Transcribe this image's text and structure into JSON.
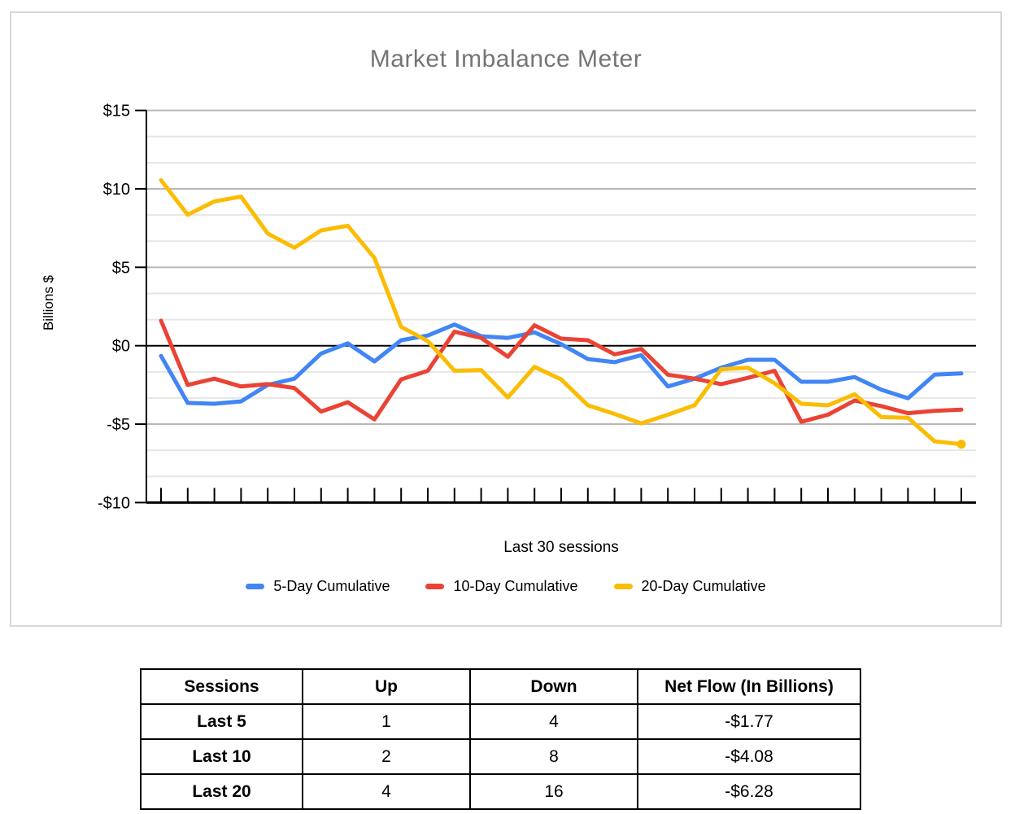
{
  "chart_data": {
    "type": "line",
    "title": "Market Imbalance Meter",
    "xlabel": "Last 30 sessions",
    "ylabel": "Billions $",
    "ylim": [
      -10,
      15
    ],
    "y_ticks": [
      15,
      10,
      5,
      0,
      -5,
      -10
    ],
    "y_tick_labels": [
      "$15",
      "$10",
      "$5",
      "$0",
      "-$5",
      "-$10"
    ],
    "x_tick_labels": [],
    "n_points": 31,
    "grid": "major and minor horizontal gridlines, minor every 1.67",
    "legend_position": "bottom",
    "series": [
      {
        "name": "5-Day Cumulative",
        "color": "#4285F4",
        "end_marker": false,
        "values": [
          -0.65,
          -3.65,
          -3.7,
          -3.55,
          -2.5,
          -2.1,
          -0.5,
          0.15,
          -1.0,
          0.35,
          0.65,
          1.35,
          0.6,
          0.5,
          0.85,
          0.1,
          -0.85,
          -1.05,
          -0.6,
          -2.6,
          -2.1,
          -1.4,
          -0.9,
          -0.9,
          -2.3,
          -2.3,
          -2.0,
          -2.8,
          -3.35,
          -1.85,
          -1.77
        ]
      },
      {
        "name": "10-Day Cumulative",
        "color": "#EA4335",
        "end_marker": false,
        "values": [
          1.6,
          -2.5,
          -2.1,
          -2.6,
          -2.45,
          -2.7,
          -4.2,
          -3.6,
          -4.7,
          -2.15,
          -1.6,
          0.9,
          0.5,
          -0.7,
          1.3,
          0.45,
          0.35,
          -0.55,
          -0.2,
          -1.85,
          -2.1,
          -2.45,
          -2.05,
          -1.6,
          -4.85,
          -4.4,
          -3.5,
          -3.85,
          -4.3,
          -4.15,
          -4.08
        ]
      },
      {
        "name": "20-Day Cumulative",
        "color": "#FBBC04",
        "end_marker": true,
        "values": [
          10.55,
          8.35,
          9.2,
          9.5,
          7.15,
          6.25,
          7.35,
          7.65,
          5.6,
          1.2,
          0.3,
          -1.6,
          -1.55,
          -3.3,
          -1.35,
          -2.15,
          -3.8,
          -4.35,
          -4.95,
          -4.4,
          -3.8,
          -1.5,
          -1.4,
          -2.4,
          -3.7,
          -3.8,
          -3.1,
          -4.55,
          -4.6,
          -6.1,
          -6.28
        ]
      }
    ],
    "colors": {
      "major_grid": "#b7b7b7",
      "minor_grid": "#e6e6e6",
      "zero_line": "#000000",
      "axis": "#000000",
      "title": "#757575"
    }
  },
  "table": {
    "headers": [
      "Sessions",
      "Up",
      "Down",
      "Net Flow (In Billions)"
    ],
    "rows": [
      [
        "Last 5",
        "1",
        "4",
        "-$1.77"
      ],
      [
        "Last 10",
        "2",
        "8",
        "-$4.08"
      ],
      [
        "Last 20",
        "4",
        "16",
        "-$6.28"
      ]
    ]
  }
}
